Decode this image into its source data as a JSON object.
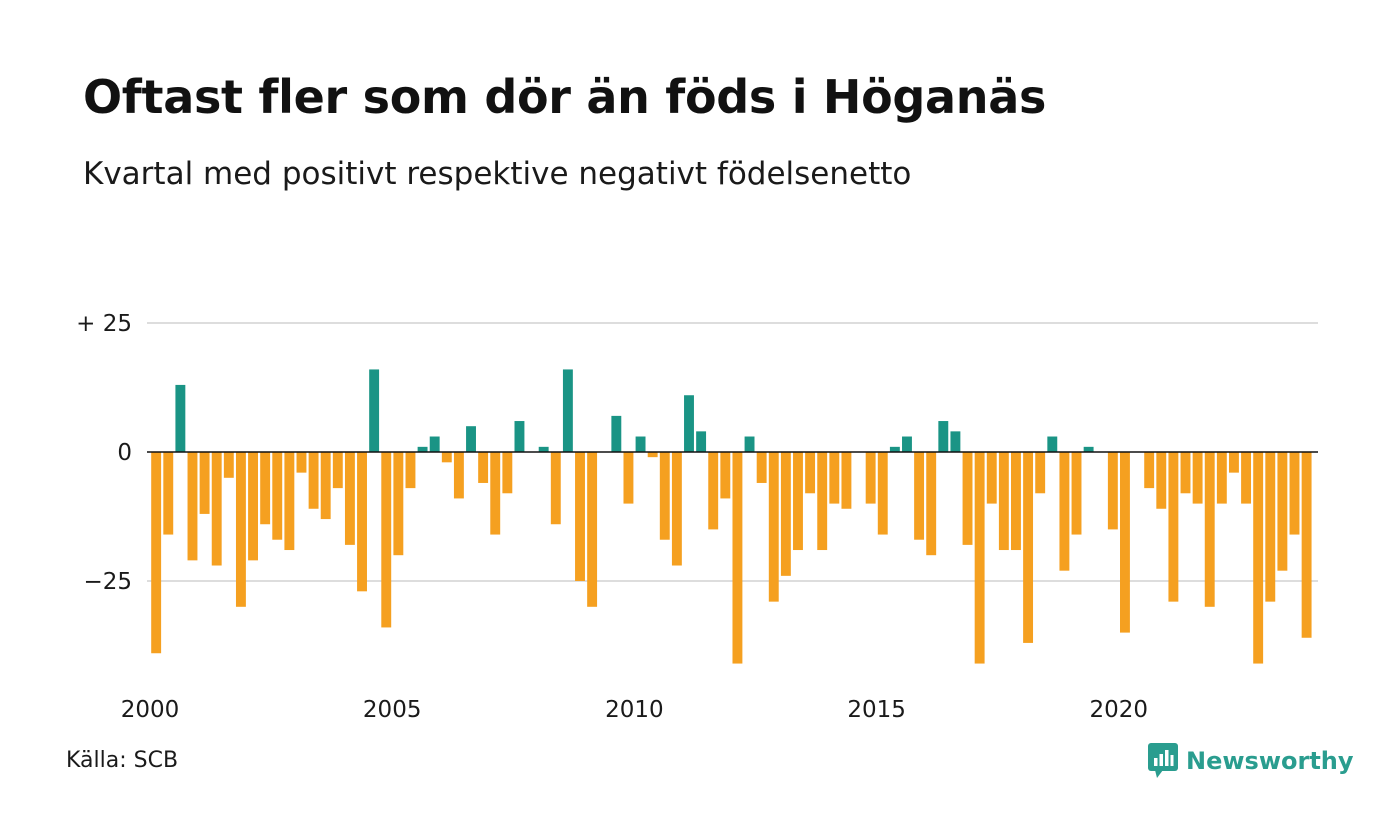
{
  "header": {
    "title": "Oftast fler som dör än föds i Höganäs",
    "subtitle": "Kvartal med positivt respektive negativt födelsenetto"
  },
  "footer": {
    "source": "Källa: SCB",
    "brand": "Newsworthy",
    "brand_icon": "newsworthy-logo-icon"
  },
  "colors": {
    "positive": "#1a9485",
    "negative": "#f5a020",
    "brand": "#2a9d8f",
    "grid": "#dddddd"
  },
  "chart_data": {
    "type": "bar",
    "title": "Oftast fler som dör än föds i Höganäs",
    "subtitle": "Kvartal med positivt respektive negativt födelsenetto",
    "xlabel": "",
    "ylabel": "",
    "x_start": 2000,
    "periods_per_year": 4,
    "x_ticks": [
      {
        "value": 2000,
        "label": "2000"
      },
      {
        "value": 2005,
        "label": "2005"
      },
      {
        "value": 2010,
        "label": "2010"
      },
      {
        "value": 2015,
        "label": "2015"
      },
      {
        "value": 2020,
        "label": "2020"
      }
    ],
    "y_ticks": [
      {
        "value": 25,
        "label": "+ 25"
      },
      {
        "value": 0,
        "label": "0"
      },
      {
        "value": -25,
        "label": "−25"
      }
    ],
    "ylim": [
      -45,
      25
    ],
    "grid": true,
    "legend": "none",
    "values": [
      -39,
      -16,
      13,
      -21,
      -12,
      -22,
      -5,
      -30,
      -21,
      -14,
      -17,
      -19,
      -4,
      -11,
      -13,
      -7,
      -18,
      -27,
      16,
      -34,
      -20,
      -7,
      1,
      3,
      -2,
      -9,
      5,
      -6,
      -16,
      -8,
      6,
      0,
      1,
      -14,
      16,
      -25,
      -30,
      0,
      7,
      -10,
      3,
      -1,
      -17,
      -22,
      11,
      4,
      -15,
      -9,
      -41,
      3,
      -6,
      -29,
      -24,
      -19,
      -8,
      -19,
      -10,
      -11,
      0,
      -10,
      -16,
      1,
      3,
      -17,
      -20,
      6,
      4,
      -18,
      -41,
      -10,
      -19,
      -19,
      -37,
      -8,
      3,
      -23,
      -16,
      1,
      0,
      -15,
      -35,
      0,
      -7,
      -11,
      -29,
      -8,
      -10,
      -30,
      -10,
      -4,
      -10,
      -41,
      -29,
      -23,
      -16,
      -36
    ]
  }
}
